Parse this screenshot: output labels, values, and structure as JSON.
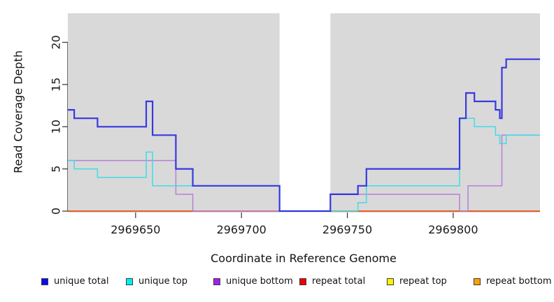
{
  "chart_data": {
    "type": "line",
    "subtype": "step",
    "title": "",
    "xlabel": "Coordinate in Reference Genome",
    "ylabel": "Read Coverage Depth",
    "x_domain": [
      2969618,
      2969841
    ],
    "y_domain": [
      0,
      23.4
    ],
    "grid": false,
    "legend_position": "bottom",
    "panel_bg": "#d9d9d9",
    "axis_color": "#6e6e6e",
    "tick_color": "#333333",
    "no_data_band": {
      "x_start": 2969718,
      "x_end": 2969742,
      "color": "#ffffff"
    },
    "x_ticks": [
      {
        "value": 2969650,
        "label": "2969650"
      },
      {
        "value": 2969700,
        "label": "2969700"
      },
      {
        "value": 2969750,
        "label": "2969750"
      },
      {
        "value": 2969800,
        "label": "2969800"
      }
    ],
    "y_ticks": [
      {
        "value": 0,
        "label": "0"
      },
      {
        "value": 5,
        "label": "5"
      },
      {
        "value": 10,
        "label": "10"
      },
      {
        "value": 15,
        "label": "15"
      },
      {
        "value": 20,
        "label": "20"
      }
    ],
    "series": [
      {
        "name": "unique total",
        "color": "#2b2be0",
        "legend_color": "#0b0bf0",
        "line_width": 2.2,
        "points": [
          [
            2969618,
            12
          ],
          [
            2969621,
            11
          ],
          [
            2969632,
            10
          ],
          [
            2969655,
            13
          ],
          [
            2969658,
            9
          ],
          [
            2969669,
            5
          ],
          [
            2969677,
            3
          ],
          [
            2969718,
            0
          ],
          [
            2969742,
            2
          ],
          [
            2969755,
            3
          ],
          [
            2969759,
            5
          ],
          [
            2969803,
            11
          ],
          [
            2969806,
            14
          ],
          [
            2969810,
            13
          ],
          [
            2969820,
            12
          ],
          [
            2969822,
            11
          ],
          [
            2969823,
            17
          ],
          [
            2969825,
            18
          ]
        ]
      },
      {
        "name": "unique top",
        "color": "#35dce6",
        "legend_color": "#00efef",
        "line_width": 1.5,
        "points": [
          [
            2969618,
            6
          ],
          [
            2969621,
            5
          ],
          [
            2969632,
            4
          ],
          [
            2969655,
            7
          ],
          [
            2969658,
            3
          ],
          [
            2969718,
            0
          ],
          [
            2969755,
            1
          ],
          [
            2969759,
            3
          ],
          [
            2969803,
            11
          ],
          [
            2969810,
            10
          ],
          [
            2969820,
            9
          ],
          [
            2969822,
            8
          ],
          [
            2969825,
            9
          ]
        ]
      },
      {
        "name": "unique bottom",
        "color": "#b577d8",
        "legend_color": "#a020f0",
        "line_width": 1.5,
        "points": [
          [
            2969618,
            6
          ],
          [
            2969669,
            2
          ],
          [
            2969677,
            0
          ],
          [
            2969742,
            2
          ],
          [
            2969803,
            0
          ],
          [
            2969807,
            3
          ],
          [
            2969823,
            9
          ]
        ]
      },
      {
        "name": "repeat total",
        "color": "#e03030",
        "legend_color": "#ee0000",
        "line_width": 1.5,
        "points": [
          [
            2969618,
            0
          ]
        ]
      },
      {
        "name": "repeat top",
        "color": "#f5e500",
        "legend_color": "#fff200",
        "line_width": 1.5,
        "points": [
          [
            2969618,
            0
          ]
        ]
      },
      {
        "name": "repeat bottom",
        "color": "#ff9500",
        "legend_color": "#ffa000",
        "line_width": 1.8,
        "points": [
          [
            2969618,
            0
          ]
        ]
      }
    ]
  }
}
